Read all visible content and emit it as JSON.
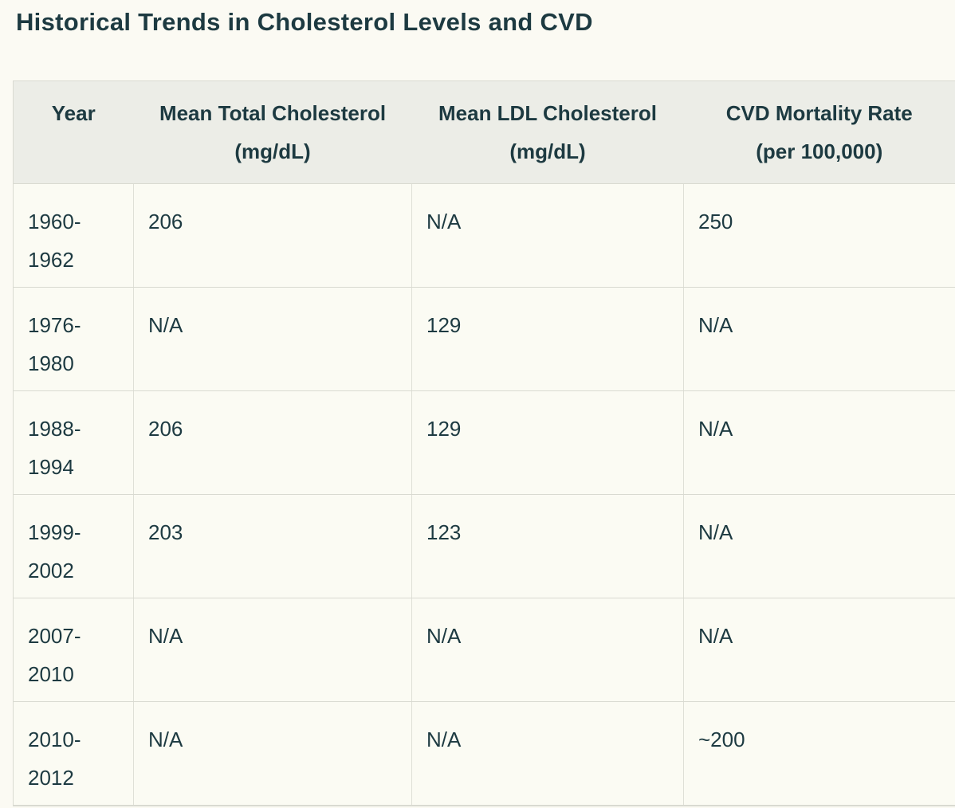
{
  "page": {
    "title": "Historical Trends in Cholesterol Levels and CVD"
  },
  "colors": {
    "text": "#1d3a41",
    "page_bg": "#fbfaf3",
    "header_bg": "#ecede7",
    "cell_bg": "#fbfbf3",
    "border": "#d9dad1"
  },
  "table": {
    "columns": [
      {
        "label": "Year"
      },
      {
        "label": "Mean Total Cholesterol\n(mg/dL)"
      },
      {
        "label": "Mean LDL Cholesterol\n(mg/dL)"
      },
      {
        "label": "CVD Mortality Rate\n(per 100,000)"
      }
    ],
    "rows": [
      {
        "year": "1960-\n1962",
        "total_cholesterol": "206",
        "ldl_cholesterol": "N/A",
        "cvd_mortality": "250"
      },
      {
        "year": "1976-\n1980",
        "total_cholesterol": "N/A",
        "ldl_cholesterol": "129",
        "cvd_mortality": "N/A"
      },
      {
        "year": "1988-\n1994",
        "total_cholesterol": "206",
        "ldl_cholesterol": "129",
        "cvd_mortality": "N/A"
      },
      {
        "year": "1999-\n2002",
        "total_cholesterol": "203",
        "ldl_cholesterol": "123",
        "cvd_mortality": "N/A"
      },
      {
        "year": "2007-\n2010",
        "total_cholesterol": "N/A",
        "ldl_cholesterol": "N/A",
        "cvd_mortality": "N/A"
      },
      {
        "year": "2010-\n2012",
        "total_cholesterol": "N/A",
        "ldl_cholesterol": "N/A",
        "cvd_mortality": "~200"
      }
    ]
  }
}
